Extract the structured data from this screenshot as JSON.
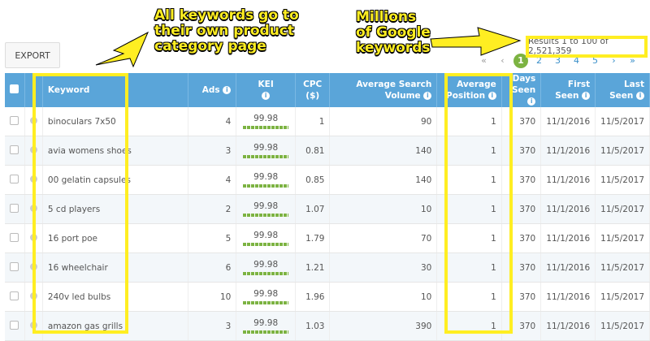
{
  "toolbar": {
    "export_label": "EXPORT"
  },
  "results_text": "Results 1 to 100 of 2,521,359",
  "pager": {
    "first": "«",
    "prev": "‹",
    "pages": [
      "1",
      "2",
      "3",
      "4",
      "5"
    ],
    "current": "1",
    "next": "›",
    "last": "»"
  },
  "annotations": {
    "keywords": "All keywords go to\ntheir own product\ncategory page",
    "google": "Millions\nof Google\nkeywords",
    "highlight_color": "#ffee22"
  },
  "columns": [
    "Keyword",
    "Ads",
    "KEI",
    "CPC ($)",
    "Average Search Volume",
    "Average Position",
    "Days Seen",
    "First Seen",
    "Last Seen"
  ],
  "header_color": "#5aa5d9",
  "rows": [
    {
      "keyword": "binoculars 7x50",
      "ads": "4",
      "kei": "99.98",
      "cpc": "1",
      "volume": "90",
      "position": "1",
      "days": "370",
      "first": "11/1/2016",
      "last": "11/5/2017"
    },
    {
      "keyword": "avia womens shoes",
      "ads": "3",
      "kei": "99.98",
      "cpc": "0.81",
      "volume": "140",
      "position": "1",
      "days": "370",
      "first": "11/1/2016",
      "last": "11/5/2017"
    },
    {
      "keyword": "00 gelatin capsules",
      "ads": "4",
      "kei": "99.98",
      "cpc": "0.85",
      "volume": "140",
      "position": "1",
      "days": "370",
      "first": "11/1/2016",
      "last": "11/5/2017"
    },
    {
      "keyword": "5 cd players",
      "ads": "2",
      "kei": "99.98",
      "cpc": "1.07",
      "volume": "10",
      "position": "1",
      "days": "370",
      "first": "11/1/2016",
      "last": "11/5/2017"
    },
    {
      "keyword": "16 port poe",
      "ads": "5",
      "kei": "99.98",
      "cpc": "1.79",
      "volume": "70",
      "position": "1",
      "days": "370",
      "first": "11/1/2016",
      "last": "11/5/2017"
    },
    {
      "keyword": "16 wheelchair",
      "ads": "6",
      "kei": "99.98",
      "cpc": "1.21",
      "volume": "30",
      "position": "1",
      "days": "370",
      "first": "11/1/2016",
      "last": "11/5/2017"
    },
    {
      "keyword": "240v led bulbs",
      "ads": "10",
      "kei": "99.98",
      "cpc": "1.96",
      "volume": "10",
      "position": "1",
      "days": "370",
      "first": "11/1/2016",
      "last": "11/5/2017"
    },
    {
      "keyword": "amazon gas grills",
      "ads": "3",
      "kei": "99.98",
      "cpc": "1.03",
      "volume": "390",
      "position": "1",
      "days": "370",
      "first": "11/1/2016",
      "last": "11/5/2017"
    }
  ]
}
